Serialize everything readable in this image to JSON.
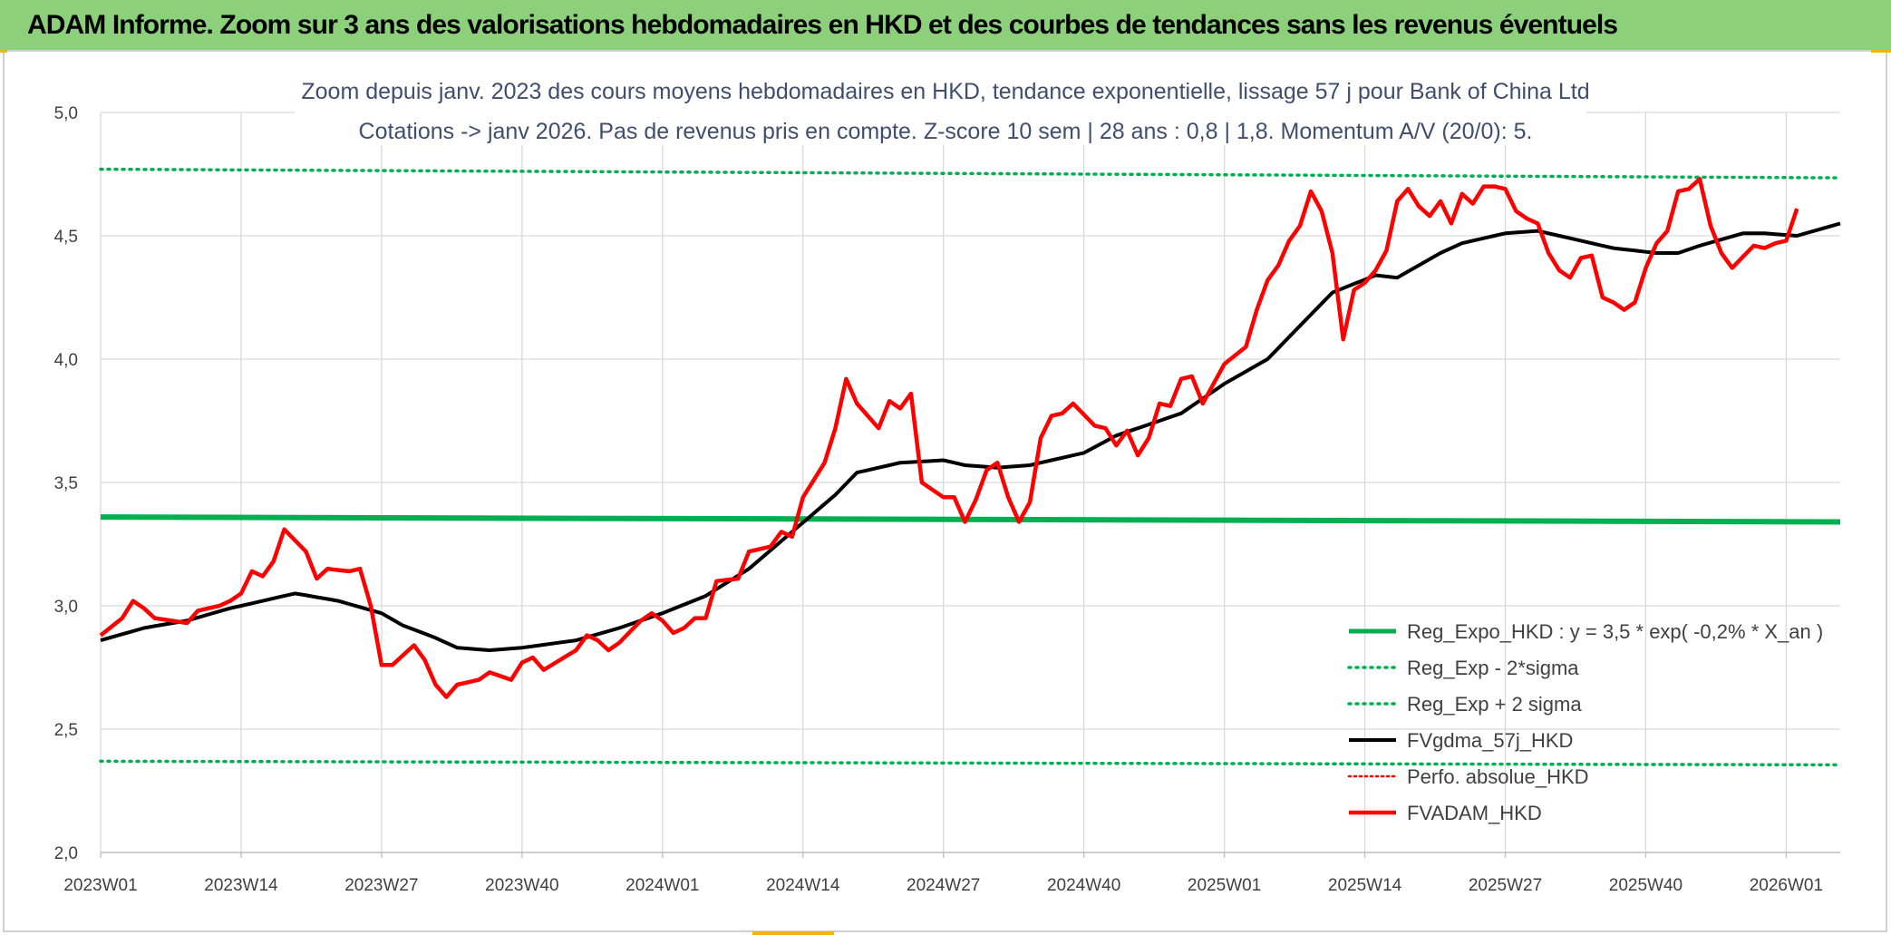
{
  "header": {
    "title": "ADAM Informe. Zoom sur 3 ans des valorisations hebdomadaires en HKD et des courbes de tendances sans les revenus éventuels"
  },
  "chart_data": {
    "type": "line",
    "subtitle_lines": [
      "Zoom depuis janv. 2023 des cours moyens hebdomadaires en HKD, tendance exponentielle, lissage 57 j pour Bank of China Ltd",
      "Cotations -> janv 2026. Pas de revenus pris en compte. Z-score 10 sem | 28 ans : 0,8 | 1,8. Momentum A/V (20/0): 5."
    ],
    "ylim": [
      2.0,
      5.0
    ],
    "y_ticks": [
      "2,0",
      "2,5",
      "3,0",
      "3,5",
      "4,0",
      "4,5",
      "5,0"
    ],
    "x_ticks": [
      {
        "i": 0,
        "label": "2023W01"
      },
      {
        "i": 13,
        "label": "2023W14"
      },
      {
        "i": 26,
        "label": "2023W27"
      },
      {
        "i": 39,
        "label": "2023W40"
      },
      {
        "i": 52,
        "label": "2024W01"
      },
      {
        "i": 65,
        "label": "2024W14"
      },
      {
        "i": 78,
        "label": "2024W27"
      },
      {
        "i": 91,
        "label": "2024W40"
      },
      {
        "i": 104,
        "label": "2025W01"
      },
      {
        "i": 117,
        "label": "2025W14"
      },
      {
        "i": 130,
        "label": "2025W27"
      },
      {
        "i": 143,
        "label": "2025W40"
      },
      {
        "i": 156,
        "label": "2026W01"
      }
    ],
    "grid": "vertical and horizontal",
    "legend_position": "bottom-right",
    "n_points": 162,
    "colors": {
      "reg": "#00b050",
      "band": "#00b050",
      "fvgdma": "#000000",
      "perfo": "#ff0000",
      "fvadam": "#ff0000"
    },
    "series": [
      {
        "key": "reg",
        "name": "Reg_Expo_HKD : y = 3,5 * exp( -0,2% *  X_an )",
        "style": "solid-thick",
        "line": [
          [
            0,
            3.36
          ],
          [
            161,
            3.34
          ]
        ]
      },
      {
        "key": "lower",
        "name": "Reg_Exp - 2*sigma",
        "style": "dotted",
        "line": [
          [
            0,
            2.37
          ],
          [
            161,
            2.355
          ]
        ]
      },
      {
        "key": "upper",
        "name": "Reg_Exp + 2 sigma",
        "style": "dotted",
        "line": [
          [
            0,
            4.77
          ],
          [
            161,
            4.735
          ]
        ]
      },
      {
        "key": "fvgdma",
        "name": "FVgdma_57j_HKD",
        "style": "solid",
        "knots": [
          [
            0,
            2.86
          ],
          [
            4,
            2.91
          ],
          [
            8,
            2.94
          ],
          [
            12,
            2.99
          ],
          [
            16,
            3.03
          ],
          [
            18,
            3.05
          ],
          [
            22,
            3.02
          ],
          [
            26,
            2.97
          ],
          [
            28,
            2.92
          ],
          [
            31,
            2.87
          ],
          [
            33,
            2.83
          ],
          [
            36,
            2.82
          ],
          [
            39,
            2.83
          ],
          [
            44,
            2.86
          ],
          [
            48,
            2.91
          ],
          [
            52,
            2.97
          ],
          [
            56,
            3.04
          ],
          [
            60,
            3.15
          ],
          [
            64,
            3.3
          ],
          [
            68,
            3.45
          ],
          [
            70,
            3.54
          ],
          [
            74,
            3.58
          ],
          [
            78,
            3.59
          ],
          [
            80,
            3.57
          ],
          [
            83,
            3.56
          ],
          [
            86,
            3.57
          ],
          [
            88,
            3.59
          ],
          [
            91,
            3.62
          ],
          [
            94,
            3.69
          ],
          [
            96,
            3.72
          ],
          [
            100,
            3.78
          ],
          [
            104,
            3.9
          ],
          [
            108,
            4.0
          ],
          [
            112,
            4.18
          ],
          [
            114,
            4.27
          ],
          [
            118,
            4.34
          ],
          [
            120,
            4.33
          ],
          [
            124,
            4.43
          ],
          [
            126,
            4.47
          ],
          [
            130,
            4.51
          ],
          [
            133,
            4.52
          ],
          [
            136,
            4.49
          ],
          [
            140,
            4.45
          ],
          [
            144,
            4.43
          ],
          [
            146,
            4.43
          ],
          [
            148,
            4.46
          ],
          [
            152,
            4.51
          ],
          [
            154,
            4.51
          ],
          [
            157,
            4.5
          ],
          [
            161,
            4.55
          ]
        ]
      },
      {
        "key": "perfo",
        "name": "Perfo. absolue_HKD",
        "style": "dotted"
      },
      {
        "key": "fvadam",
        "name": "FVADAM_HKD",
        "style": "solid-thick",
        "knots": [
          [
            0,
            2.88
          ],
          [
            2,
            2.95
          ],
          [
            3,
            3.02
          ],
          [
            4,
            2.99
          ],
          [
            5,
            2.95
          ],
          [
            8,
            2.93
          ],
          [
            9,
            2.98
          ],
          [
            11,
            3.0
          ],
          [
            12,
            3.02
          ],
          [
            13,
            3.05
          ],
          [
            14,
            3.14
          ],
          [
            15,
            3.12
          ],
          [
            16,
            3.18
          ],
          [
            17,
            3.31
          ],
          [
            19,
            3.22
          ],
          [
            20,
            3.11
          ],
          [
            21,
            3.15
          ],
          [
            23,
            3.14
          ],
          [
            24,
            3.15
          ],
          [
            25,
            3.0
          ],
          [
            26,
            2.76
          ],
          [
            27,
            2.76
          ],
          [
            29,
            2.84
          ],
          [
            30,
            2.78
          ],
          [
            31,
            2.68
          ],
          [
            32,
            2.63
          ],
          [
            33,
            2.68
          ],
          [
            35,
            2.7
          ],
          [
            36,
            2.73
          ],
          [
            38,
            2.7
          ],
          [
            39,
            2.77
          ],
          [
            40,
            2.79
          ],
          [
            41,
            2.74
          ],
          [
            44,
            2.82
          ],
          [
            45,
            2.88
          ],
          [
            46,
            2.86
          ],
          [
            47,
            2.82
          ],
          [
            48,
            2.85
          ],
          [
            50,
            2.94
          ],
          [
            51,
            2.97
          ],
          [
            52,
            2.94
          ],
          [
            53,
            2.89
          ],
          [
            54,
            2.91
          ],
          [
            55,
            2.95
          ],
          [
            56,
            2.95
          ],
          [
            57,
            3.1
          ],
          [
            59,
            3.11
          ],
          [
            60,
            3.22
          ],
          [
            62,
            3.24
          ],
          [
            63,
            3.3
          ],
          [
            64,
            3.28
          ],
          [
            65,
            3.44
          ],
          [
            67,
            3.58
          ],
          [
            68,
            3.72
          ],
          [
            69,
            3.92
          ],
          [
            70,
            3.82
          ],
          [
            72,
            3.72
          ],
          [
            73,
            3.83
          ],
          [
            74,
            3.8
          ],
          [
            75,
            3.86
          ],
          [
            76,
            3.5
          ],
          [
            77,
            3.47
          ],
          [
            78,
            3.44
          ],
          [
            79,
            3.44
          ],
          [
            80,
            3.34
          ],
          [
            81,
            3.43
          ],
          [
            82,
            3.55
          ],
          [
            83,
            3.58
          ],
          [
            84,
            3.44
          ],
          [
            85,
            3.34
          ],
          [
            86,
            3.42
          ],
          [
            87,
            3.68
          ],
          [
            88,
            3.77
          ],
          [
            89,
            3.78
          ],
          [
            90,
            3.82
          ],
          [
            92,
            3.73
          ],
          [
            93,
            3.72
          ],
          [
            94,
            3.65
          ],
          [
            95,
            3.71
          ],
          [
            96,
            3.61
          ],
          [
            97,
            3.68
          ],
          [
            98,
            3.82
          ],
          [
            99,
            3.81
          ],
          [
            100,
            3.92
          ],
          [
            101,
            3.93
          ],
          [
            102,
            3.82
          ],
          [
            103,
            3.9
          ],
          [
            104,
            3.98
          ],
          [
            106,
            4.05
          ],
          [
            107,
            4.2
          ],
          [
            108,
            4.32
          ],
          [
            109,
            4.38
          ],
          [
            110,
            4.48
          ],
          [
            111,
            4.54
          ],
          [
            112,
            4.68
          ],
          [
            113,
            4.6
          ],
          [
            114,
            4.43
          ],
          [
            115,
            4.08
          ],
          [
            116,
            4.28
          ],
          [
            117,
            4.31
          ],
          [
            118,
            4.36
          ],
          [
            119,
            4.44
          ],
          [
            120,
            4.64
          ],
          [
            121,
            4.69
          ],
          [
            122,
            4.62
          ],
          [
            123,
            4.58
          ],
          [
            124,
            4.64
          ],
          [
            125,
            4.55
          ],
          [
            126,
            4.67
          ],
          [
            127,
            4.63
          ],
          [
            128,
            4.7
          ],
          [
            129,
            4.7
          ],
          [
            130,
            4.69
          ],
          [
            131,
            4.6
          ],
          [
            132,
            4.57
          ],
          [
            133,
            4.55
          ],
          [
            134,
            4.43
          ],
          [
            135,
            4.36
          ],
          [
            136,
            4.33
          ],
          [
            137,
            4.41
          ],
          [
            138,
            4.42
          ],
          [
            139,
            4.25
          ],
          [
            140,
            4.23
          ],
          [
            141,
            4.2
          ],
          [
            142,
            4.23
          ],
          [
            143,
            4.37
          ],
          [
            144,
            4.47
          ],
          [
            145,
            4.52
          ],
          [
            146,
            4.68
          ],
          [
            147,
            4.69
          ],
          [
            148,
            4.73
          ],
          [
            149,
            4.54
          ],
          [
            150,
            4.43
          ],
          [
            151,
            4.37
          ],
          [
            153,
            4.46
          ],
          [
            154,
            4.45
          ],
          [
            155,
            4.47
          ],
          [
            156,
            4.48
          ],
          [
            157,
            4.61
          ]
        ]
      }
    ]
  }
}
